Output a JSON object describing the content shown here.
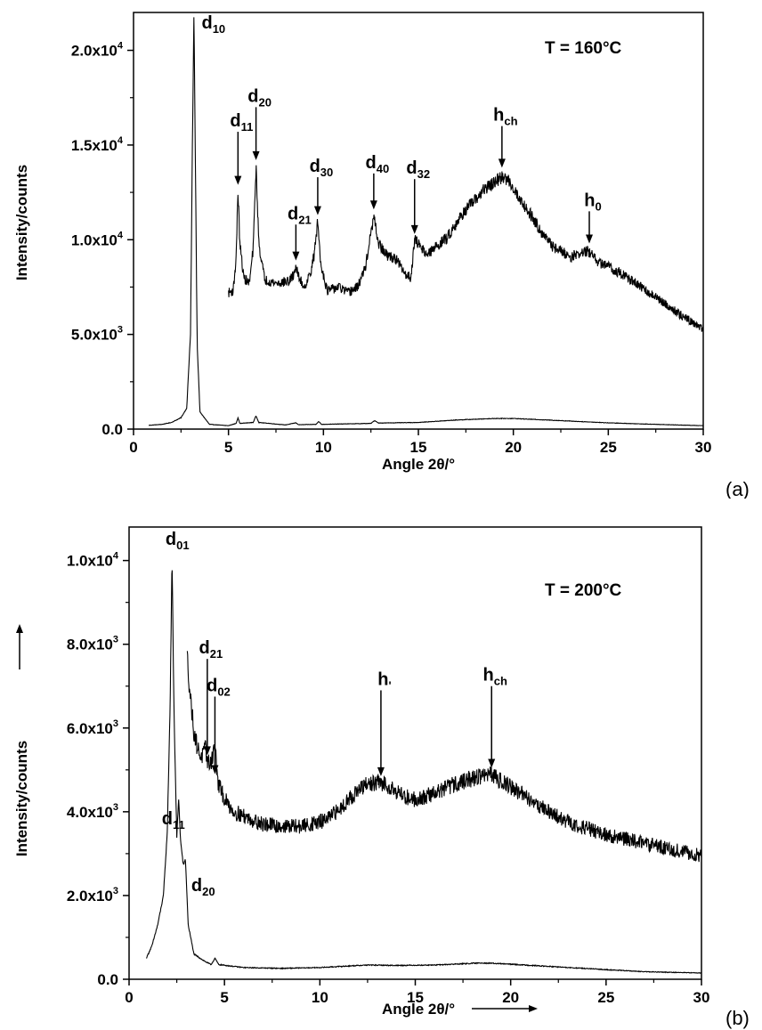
{
  "chart_data": [
    {
      "type": "line",
      "panel_label": "(a)",
      "annotation": "T = 160°C",
      "xlabel": "Angle 2θ/°",
      "ylabel": "Intensity/counts",
      "xlim": [
        0,
        30
      ],
      "ylim": [
        0,
        22000
      ],
      "x_ticks": [
        0,
        5,
        10,
        15,
        20,
        25,
        30
      ],
      "x_tick_labels": [
        "0",
        "5",
        "10",
        "15",
        "20",
        "25",
        "30"
      ],
      "y_ticks": [
        {
          "value": 0,
          "mantissa": "0.0",
          "exp": ""
        },
        {
          "value": 5000,
          "mantissa": "5.0x10",
          "exp": "3"
        },
        {
          "value": 10000,
          "mantissa": "1.0x10",
          "exp": "4"
        },
        {
          "value": 15000,
          "mantissa": "1.5x10",
          "exp": "4"
        },
        {
          "value": 20000,
          "mantissa": "2.0x10",
          "exp": "4"
        }
      ],
      "series": [
        {
          "role": "full-pattern",
          "points": [
            [
              0.8,
              200
            ],
            [
              1.5,
              250
            ],
            [
              2.0,
              350
            ],
            [
              2.5,
              600
            ],
            [
              2.8,
              1100
            ],
            [
              3.0,
              5000
            ],
            [
              3.1,
              15000
            ],
            [
              3.18,
              21800
            ],
            [
              3.25,
              15000
            ],
            [
              3.35,
              4500
            ],
            [
              3.5,
              900
            ],
            [
              4.0,
              250
            ],
            [
              5.0,
              180
            ],
            [
              5.4,
              300
            ],
            [
              5.5,
              600
            ],
            [
              5.6,
              300
            ],
            [
              6.3,
              350
            ],
            [
              6.45,
              700
            ],
            [
              6.6,
              350
            ],
            [
              8.0,
              220
            ],
            [
              8.55,
              330
            ],
            [
              8.7,
              230
            ],
            [
              9.6,
              250
            ],
            [
              9.75,
              400
            ],
            [
              9.9,
              250
            ],
            [
              12.5,
              300
            ],
            [
              12.7,
              450
            ],
            [
              12.9,
              320
            ],
            [
              15.0,
              350
            ],
            [
              17.0,
              480
            ],
            [
              19.0,
              560
            ],
            [
              20.0,
              560
            ],
            [
              22.0,
              470
            ],
            [
              25.0,
              330
            ],
            [
              27.5,
              250
            ],
            [
              30.0,
              180
            ]
          ]
        },
        {
          "role": "magnified-pattern",
          "points": [
            [
              5.0,
              7200
            ],
            [
              5.25,
              7300
            ],
            [
              5.4,
              9000
            ],
            [
              5.5,
              12600
            ],
            [
              5.6,
              9800
            ],
            [
              5.8,
              8000
            ],
            [
              6.1,
              7700
            ],
            [
              6.3,
              9500
            ],
            [
              6.45,
              13900
            ],
            [
              6.6,
              9800
            ],
            [
              6.9,
              7900
            ],
            [
              7.5,
              7700
            ],
            [
              8.2,
              7800
            ],
            [
              8.4,
              8100
            ],
            [
              8.55,
              8600
            ],
            [
              8.7,
              8000
            ],
            [
              9.0,
              7500
            ],
            [
              9.3,
              8200
            ],
            [
              9.5,
              9100
            ],
            [
              9.7,
              11000
            ],
            [
              9.85,
              8800
            ],
            [
              10.2,
              7300
            ],
            [
              10.8,
              7500
            ],
            [
              11.3,
              7200
            ],
            [
              11.8,
              7500
            ],
            [
              12.2,
              8500
            ],
            [
              12.5,
              10300
            ],
            [
              12.65,
              11200
            ],
            [
              12.9,
              9800
            ],
            [
              13.3,
              9200
            ],
            [
              13.8,
              9000
            ],
            [
              14.3,
              8200
            ],
            [
              14.6,
              8000
            ],
            [
              14.8,
              10000
            ],
            [
              15.0,
              9800
            ],
            [
              15.5,
              9200
            ],
            [
              16.0,
              9700
            ],
            [
              16.5,
              10100
            ],
            [
              17.0,
              10900
            ],
            [
              17.5,
              11600
            ],
            [
              18.0,
              12100
            ],
            [
              18.5,
              12700
            ],
            [
              19.0,
              13000
            ],
            [
              19.4,
              13300
            ],
            [
              19.8,
              13100
            ],
            [
              20.3,
              12200
            ],
            [
              21.0,
              11200
            ],
            [
              21.5,
              10400
            ],
            [
              22.0,
              9700
            ],
            [
              23.0,
              9100
            ],
            [
              23.9,
              9400
            ],
            [
              24.5,
              8800
            ],
            [
              25.0,
              8600
            ],
            [
              26.0,
              8000
            ],
            [
              27.0,
              7300
            ],
            [
              28.0,
              6600
            ],
            [
              29.0,
              5900
            ],
            [
              29.5,
              5600
            ],
            [
              30.0,
              5300
            ]
          ]
        }
      ],
      "peaks": [
        {
          "main": "d",
          "sub": "10",
          "x": 3.18,
          "arrow": false
        },
        {
          "main": "d",
          "sub": "11",
          "x": 5.5,
          "arrow": true,
          "tip": 12900,
          "top": 15700
        },
        {
          "main": "d",
          "sub": "20",
          "x": 6.45,
          "arrow": true,
          "tip": 14200,
          "top": 17000
        },
        {
          "main": "d",
          "sub": "21",
          "x": 8.55,
          "arrow": true,
          "tip": 8900,
          "top": 10800
        },
        {
          "main": "d",
          "sub": "30",
          "x": 9.7,
          "arrow": true,
          "tip": 11300,
          "top": 13300
        },
        {
          "main": "d",
          "sub": "40",
          "x": 12.65,
          "arrow": true,
          "tip": 11600,
          "top": 13500
        },
        {
          "main": "d",
          "sub": "32",
          "x": 14.8,
          "arrow": true,
          "tip": 10300,
          "top": 13200
        },
        {
          "main": "h",
          "sub": "ch",
          "x": 19.4,
          "arrow": true,
          "tip": 13800,
          "top": 16000
        },
        {
          "main": "h",
          "sub": "0",
          "x": 24.0,
          "arrow": true,
          "tip": 9800,
          "top": 11500
        }
      ]
    },
    {
      "type": "line",
      "panel_label": "(b)",
      "annotation": "T = 200°C",
      "xlabel": "Angle 2θ/°",
      "ylabel": "Intensity/counts",
      "xlim": [
        0,
        30
      ],
      "ylim": [
        0,
        10800
      ],
      "x_ticks": [
        0,
        5,
        10,
        15,
        20,
        25,
        30
      ],
      "x_tick_labels": [
        "0",
        "5",
        "10",
        "15",
        "20",
        "25",
        "30"
      ],
      "y_ticks": [
        {
          "value": 0,
          "mantissa": "0.0",
          "exp": ""
        },
        {
          "value": 2000,
          "mantissa": "2.0x10",
          "exp": "3"
        },
        {
          "value": 4000,
          "mantissa": "4.0x10",
          "exp": "3"
        },
        {
          "value": 6000,
          "mantissa": "6.0x10",
          "exp": "3"
        },
        {
          "value": 8000,
          "mantissa": "8.0x10",
          "exp": "3"
        },
        {
          "value": 10000,
          "mantissa": "1.0x10",
          "exp": "4"
        }
      ],
      "series": [
        {
          "role": "full-pattern",
          "points": [
            [
              0.9,
              500
            ],
            [
              1.2,
              800
            ],
            [
              1.5,
              1300
            ],
            [
              1.8,
              2000
            ],
            [
              2.0,
              3500
            ],
            [
              2.15,
              6500
            ],
            [
              2.25,
              10100
            ],
            [
              2.35,
              6500
            ],
            [
              2.5,
              3400
            ],
            [
              2.6,
              4300
            ],
            [
              2.7,
              3300
            ],
            [
              2.85,
              2700
            ],
            [
              2.95,
              2900
            ],
            [
              3.1,
              1300
            ],
            [
              3.4,
              600
            ],
            [
              4.0,
              420
            ],
            [
              4.3,
              350
            ],
            [
              4.5,
              500
            ],
            [
              4.7,
              350
            ],
            [
              6.0,
              280
            ],
            [
              8.0,
              260
            ],
            [
              10.0,
              280
            ],
            [
              12.5,
              340
            ],
            [
              14.0,
              330
            ],
            [
              16.0,
              340
            ],
            [
              18.5,
              390
            ],
            [
              20.0,
              360
            ],
            [
              23.0,
              280
            ],
            [
              27.0,
              180
            ],
            [
              30.0,
              150
            ]
          ]
        },
        {
          "role": "magnified-pattern",
          "points": [
            [
              3.05,
              7700
            ],
            [
              3.2,
              6800
            ],
            [
              3.4,
              5900
            ],
            [
              3.6,
              5500
            ],
            [
              3.8,
              5300
            ],
            [
              4.0,
              5500
            ],
            [
              4.15,
              5150
            ],
            [
              4.3,
              5200
            ],
            [
              4.5,
              5600
            ],
            [
              4.65,
              4700
            ],
            [
              5.0,
              4300
            ],
            [
              5.5,
              4000
            ],
            [
              6.0,
              3900
            ],
            [
              7.0,
              3700
            ],
            [
              8.0,
              3650
            ],
            [
              9.0,
              3650
            ],
            [
              10.0,
              3750
            ],
            [
              10.5,
              3850
            ],
            [
              11.0,
              4050
            ],
            [
              11.5,
              4300
            ],
            [
              12.0,
              4500
            ],
            [
              12.5,
              4650
            ],
            [
              13.0,
              4700
            ],
            [
              13.5,
              4650
            ],
            [
              14.0,
              4500
            ],
            [
              14.5,
              4350
            ],
            [
              15.0,
              4300
            ],
            [
              15.5,
              4350
            ],
            [
              16.0,
              4450
            ],
            [
              17.0,
              4650
            ],
            [
              18.0,
              4800
            ],
            [
              18.8,
              4900
            ],
            [
              19.3,
              4800
            ],
            [
              20.0,
              4600
            ],
            [
              21.0,
              4300
            ],
            [
              22.0,
              4000
            ],
            [
              23.0,
              3750
            ],
            [
              24.0,
              3600
            ],
            [
              25.0,
              3450
            ],
            [
              26.0,
              3350
            ],
            [
              27.0,
              3250
            ],
            [
              28.0,
              3150
            ],
            [
              29.0,
              3050
            ],
            [
              30.0,
              2950
            ]
          ]
        }
      ],
      "peaks": [
        {
          "main": "d",
          "sub": "01",
          "x": 2.25,
          "arrow": false
        },
        {
          "main": "d",
          "sub": "11",
          "x": 2.6,
          "arrow": false
        },
        {
          "main": "d",
          "sub": "20",
          "x": 2.95,
          "arrow": false
        },
        {
          "main": "d",
          "sub": "21",
          "x": 4.1,
          "arrow": true,
          "tip": 5350,
          "top": 7650
        },
        {
          "main": "d",
          "sub": "02",
          "x": 4.5,
          "arrow": true,
          "tip": 4900,
          "top": 6750
        },
        {
          "main": "h",
          "sub": "'",
          "x": 13.2,
          "arrow": true,
          "tip": 4850,
          "top": 6900
        },
        {
          "main": "h",
          "sub": "ch",
          "x": 19.0,
          "arrow": true,
          "tip": 5050,
          "top": 7000
        }
      ]
    }
  ]
}
